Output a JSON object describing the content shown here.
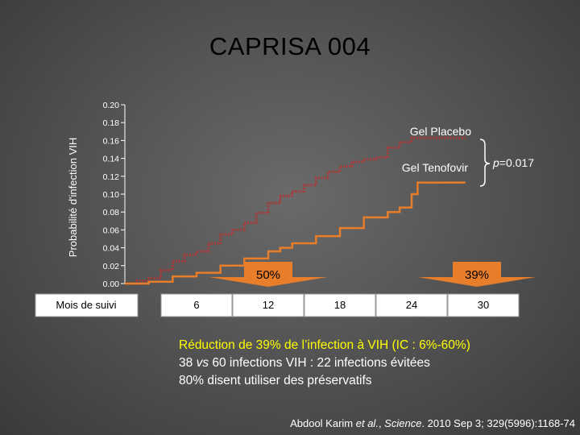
{
  "title": "CAPRISA 004",
  "chart_data": {
    "type": "line",
    "title": "CAPRISA 004",
    "ylabel": "Probabilité d'infection VIH",
    "xlabel": "Mois de suivi",
    "ylim": [
      0,
      0.2
    ],
    "xlim": [
      0,
      30
    ],
    "y_ticks": [
      "0.00",
      "0.02",
      "0.04",
      "0.06",
      "0.08",
      "0.10",
      "0.12",
      "0.14",
      "0.16",
      "0.18",
      "0.20"
    ],
    "x_ticks": [
      "6",
      "12",
      "18",
      "24",
      "30"
    ],
    "series": [
      {
        "name": "Gel Placebo",
        "color": "#a83b3b",
        "style": "dotted",
        "points": [
          [
            0,
            0
          ],
          [
            1,
            0.003
          ],
          [
            2,
            0.006
          ],
          [
            3,
            0.015
          ],
          [
            4,
            0.025
          ],
          [
            5,
            0.032
          ],
          [
            6,
            0.036
          ],
          [
            7,
            0.045
          ],
          [
            8,
            0.055
          ],
          [
            9,
            0.06
          ],
          [
            10,
            0.068
          ],
          [
            11,
            0.079
          ],
          [
            12,
            0.09
          ],
          [
            13,
            0.098
          ],
          [
            14,
            0.103
          ],
          [
            15,
            0.11
          ],
          [
            16,
            0.118
          ],
          [
            17,
            0.125
          ],
          [
            18,
            0.131
          ],
          [
            19,
            0.136
          ],
          [
            20,
            0.139
          ],
          [
            21,
            0.141
          ],
          [
            22,
            0.152
          ],
          [
            23,
            0.158
          ],
          [
            24,
            0.163
          ],
          [
            25,
            0.163
          ],
          [
            28.5,
            0.163
          ]
        ]
      },
      {
        "name": "Gel Tenofovir",
        "color": "#e87d2a",
        "style": "solid",
        "points": [
          [
            0,
            0
          ],
          [
            2,
            0.002
          ],
          [
            4,
            0.008
          ],
          [
            6,
            0.012
          ],
          [
            8,
            0.02
          ],
          [
            10,
            0.028
          ],
          [
            12,
            0.036
          ],
          [
            13,
            0.04
          ],
          [
            14,
            0.045
          ],
          [
            16,
            0.053
          ],
          [
            18,
            0.062
          ],
          [
            20,
            0.074
          ],
          [
            22,
            0.08
          ],
          [
            23,
            0.085
          ],
          [
            24,
            0.1
          ],
          [
            24.5,
            0.113
          ],
          [
            25,
            0.113
          ],
          [
            28.5,
            0.113
          ]
        ]
      }
    ],
    "annotations": [
      {
        "text": "50%",
        "x": 12
      },
      {
        "text": "39%",
        "x": 30
      },
      {
        "text": "p=0.017"
      }
    ]
  },
  "summary": {
    "line1": "Réduction de 39% de l’infection à VIH (IC : 6%-60%)",
    "line2_prefix": "38 ",
    "line2_vs": "vs",
    "line2_suffix": " 60 infections VIH : 22 infections évitées",
    "line3": "80% disent utiliser des préservatifs"
  },
  "citation": {
    "prefix": "Abdool Karim ",
    "etal": "et al.",
    "journal_sep": ", ",
    "journal": "Science",
    "suffix": ". 2010 Sep 3; 329(5996):1168-74"
  },
  "colors": {
    "placebo": "#a83b3b",
    "tenofovir": "#e87d2a",
    "arrow": "#e87d2a",
    "highlight": "#ffff00"
  }
}
